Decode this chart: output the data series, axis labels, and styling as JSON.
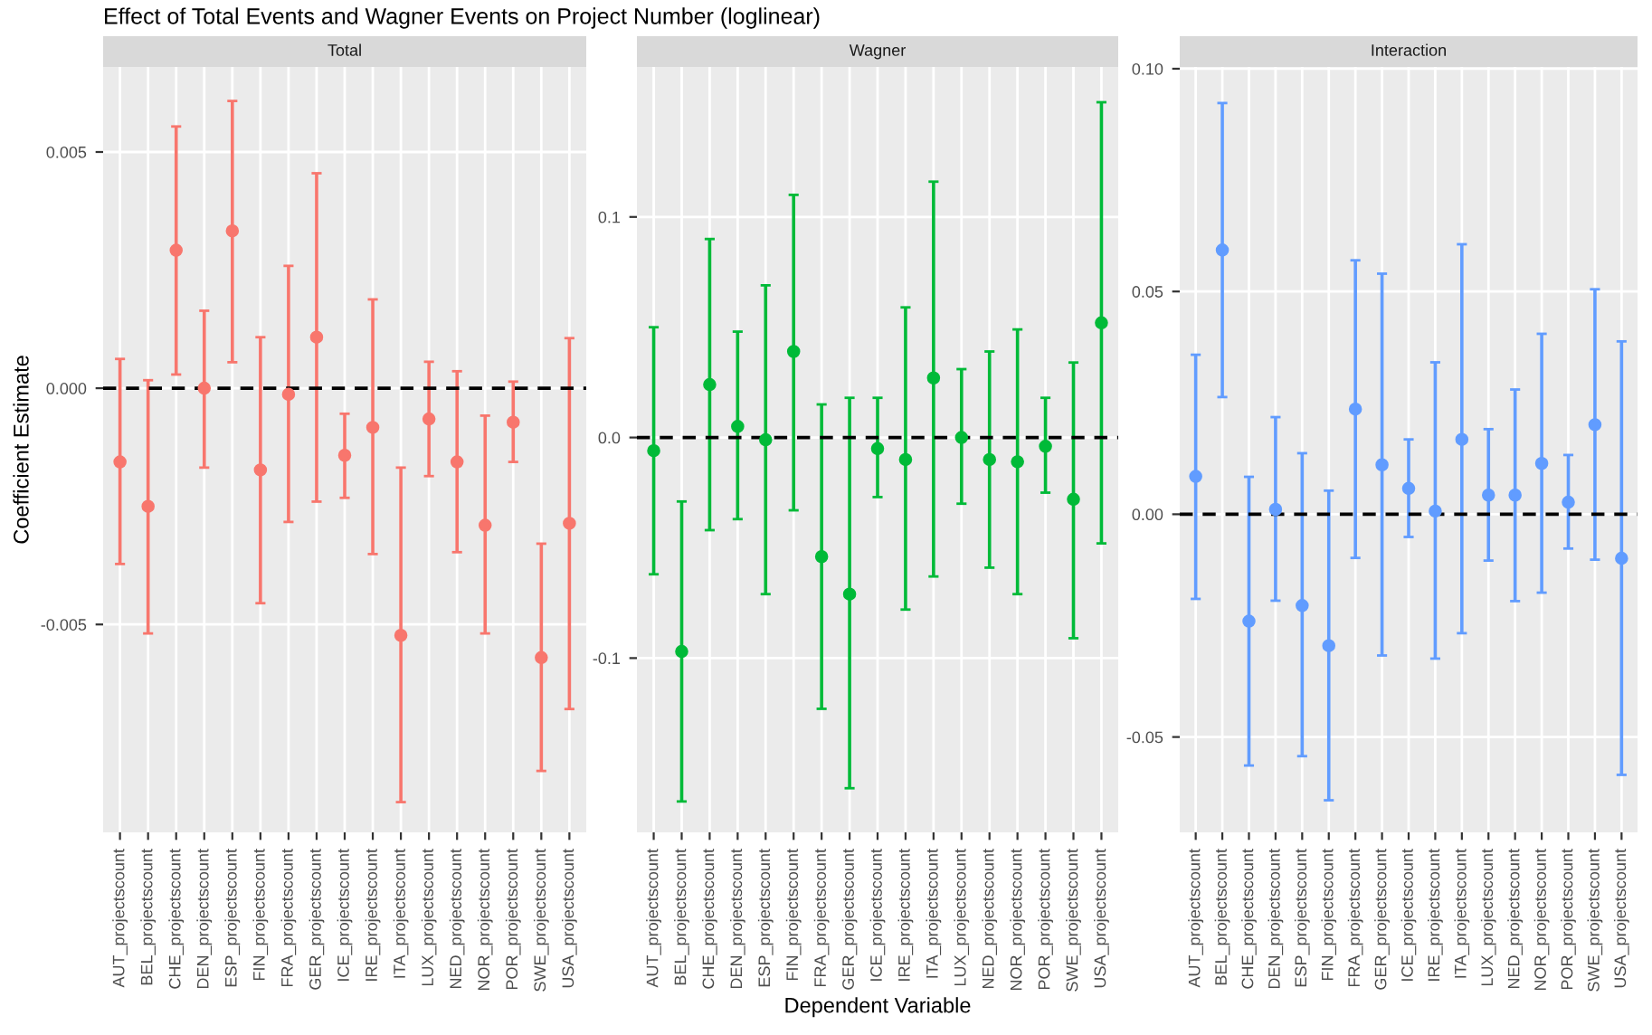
{
  "chart_data": [
    {
      "type": "scatter",
      "title": "Total",
      "ylabel": "Coefficient Estimate",
      "annotations": [
        "Effect of Total Events and Wagner Events on Project Number (loglinear)"
      ],
      "categories": [
        "AUT_projectscount",
        "BEL_projectscount",
        "CHE_projectscount",
        "DEN_projectscount",
        "ESP_projectscount",
        "FIN_projectscount",
        "FRA_projectscount",
        "GER_projectscount",
        "ICE_projectscount",
        "IRE_projectscount",
        "ITA_projectscount",
        "LUX_projectscount",
        "NED_projectscount",
        "NOR_projectscount",
        "POR_projectscount",
        "SWE_projectscount",
        "USA_projectscount"
      ],
      "series": [
        {
          "color": "#f8766d",
          "values": [
            -0.00156,
            -0.0025,
            0.00292,
            0.0,
            0.00333,
            -0.00173,
            -0.00013,
            0.00108,
            -0.00142,
            -0.00083,
            -0.00523,
            -0.00065,
            -0.00156,
            -0.0029,
            -0.00072,
            -0.0057,
            -0.00286
          ],
          "errors": [
            [
              -0.00372,
              0.00062
            ],
            [
              -0.00519,
              0.00017
            ],
            [
              0.00029,
              0.00554
            ],
            [
              -0.00168,
              0.00164
            ],
            [
              0.00055,
              0.00608
            ],
            [
              -0.00455,
              0.00108
            ],
            [
              -0.00283,
              0.00259
            ],
            [
              -0.0024,
              0.00455
            ],
            [
              -0.00232,
              -0.00054
            ],
            [
              -0.00351,
              0.00188
            ],
            [
              -0.00876,
              -0.00168
            ],
            [
              -0.00186,
              0.00056
            ],
            [
              -0.00347,
              0.00036
            ],
            [
              -0.00519,
              -0.00058
            ],
            [
              -0.00156,
              0.00014
            ],
            [
              -0.0081,
              -0.00329
            ],
            [
              -0.00679,
              0.00106
            ]
          ]
        }
      ],
      "ylim": [
        -0.0094,
        0.0068
      ],
      "yticks": [
        {
          "value": -0.005,
          "label": "-0.005"
        },
        {
          "value": 0,
          "label": "0.000"
        },
        {
          "value": 0.005,
          "label": "0.005"
        }
      ],
      "ref_lines": [
        {
          "axis": "y",
          "value": 0,
          "line_style": "dashed",
          "color": "#000000"
        }
      ],
      "grid": true,
      "marker": "circle"
    },
    {
      "type": "scatter",
      "title": "Wagner",
      "xlabel": "Dependent Variable",
      "categories": [
        "AUT_projectscount",
        "BEL_projectscount",
        "CHE_projectscount",
        "DEN_projectscount",
        "ESP_projectscount",
        "FIN_projectscount",
        "FRA_projectscount",
        "GER_projectscount",
        "ICE_projectscount",
        "IRE_projectscount",
        "ITA_projectscount",
        "LUX_projectscount",
        "NED_projectscount",
        "NOR_projectscount",
        "POR_projectscount",
        "SWE_projectscount",
        "USA_projectscount"
      ],
      "series": [
        {
          "color": "#00ba38",
          "values": [
            -0.006,
            -0.097,
            0.024,
            0.005,
            -0.001,
            0.039,
            -0.054,
            -0.071,
            -0.005,
            -0.01,
            0.027,
            0.0,
            -0.01,
            -0.011,
            -0.004,
            -0.028,
            0.052
          ],
          "errors": [
            [
              -0.062,
              0.05
            ],
            [
              -0.165,
              -0.029
            ],
            [
              -0.042,
              0.09
            ],
            [
              -0.037,
              0.048
            ],
            [
              -0.071,
              0.069
            ],
            [
              -0.033,
              0.11
            ],
            [
              -0.123,
              0.015
            ],
            [
              -0.159,
              0.018
            ],
            [
              -0.027,
              0.018
            ],
            [
              -0.078,
              0.059
            ],
            [
              -0.063,
              0.116
            ],
            [
              -0.03,
              0.031
            ],
            [
              -0.059,
              0.039
            ],
            [
              -0.071,
              0.049
            ],
            [
              -0.025,
              0.018
            ],
            [
              -0.091,
              0.034
            ],
            [
              -0.048,
              0.152
            ]
          ]
        }
      ],
      "ylim": [
        -0.179,
        0.168
      ],
      "yticks": [
        {
          "value": -0.1,
          "label": "-0.1"
        },
        {
          "value": 0,
          "label": "0.0"
        },
        {
          "value": 0.1,
          "label": "0.1"
        }
      ],
      "ref_lines": [
        {
          "axis": "y",
          "value": 0,
          "line_style": "dashed",
          "color": "#000000"
        }
      ],
      "grid": true,
      "marker": "circle"
    },
    {
      "type": "scatter",
      "title": "Interaction",
      "categories": [
        "AUT_projectscount",
        "BEL_projectscount",
        "CHE_projectscount",
        "DEN_projectscount",
        "ESP_projectscount",
        "FIN_projectscount",
        "FRA_projectscount",
        "GER_projectscount",
        "ICE_projectscount",
        "IRE_projectscount",
        "ITA_projectscount",
        "LUX_projectscount",
        "NED_projectscount",
        "NOR_projectscount",
        "POR_projectscount",
        "SWE_projectscount",
        "USA_projectscount"
      ],
      "series": [
        {
          "color": "#619cff",
          "values": [
            0.0085,
            0.0593,
            -0.024,
            0.0011,
            -0.0205,
            -0.0295,
            0.0236,
            0.0111,
            0.0058,
            0.0007,
            0.0168,
            0.0043,
            0.0043,
            0.0114,
            0.0027,
            0.0201,
            -0.0099
          ],
          "errors": [
            [
              -0.019,
              0.0358
            ],
            [
              0.0263,
              0.0923
            ],
            [
              -0.0564,
              0.0084
            ],
            [
              -0.0194,
              0.0218
            ],
            [
              -0.0543,
              0.0137
            ],
            [
              -0.0642,
              0.0053
            ],
            [
              -0.0098,
              0.057
            ],
            [
              -0.0317,
              0.054
            ],
            [
              -0.0051,
              0.0168
            ],
            [
              -0.0324,
              0.0341
            ],
            [
              -0.0267,
              0.0606
            ],
            [
              -0.0104,
              0.0191
            ],
            [
              -0.0195,
              0.028
            ],
            [
              -0.0176,
              0.0405
            ],
            [
              -0.0077,
              0.0133
            ],
            [
              -0.0102,
              0.0505
            ],
            [
              -0.0585,
              0.0388
            ]
          ]
        }
      ],
      "ylim": [
        -0.0714,
        0.1004
      ],
      "yticks": [
        {
          "value": -0.05,
          "label": "-0.05"
        },
        {
          "value": 0,
          "label": "0.00"
        },
        {
          "value": 0.05,
          "label": "0.05"
        },
        {
          "value": 0.1,
          "label": "0.10"
        }
      ],
      "ref_lines": [
        {
          "axis": "y",
          "value": 0,
          "line_style": "dashed",
          "color": "#000000"
        }
      ],
      "grid": true,
      "marker": "circle"
    }
  ]
}
